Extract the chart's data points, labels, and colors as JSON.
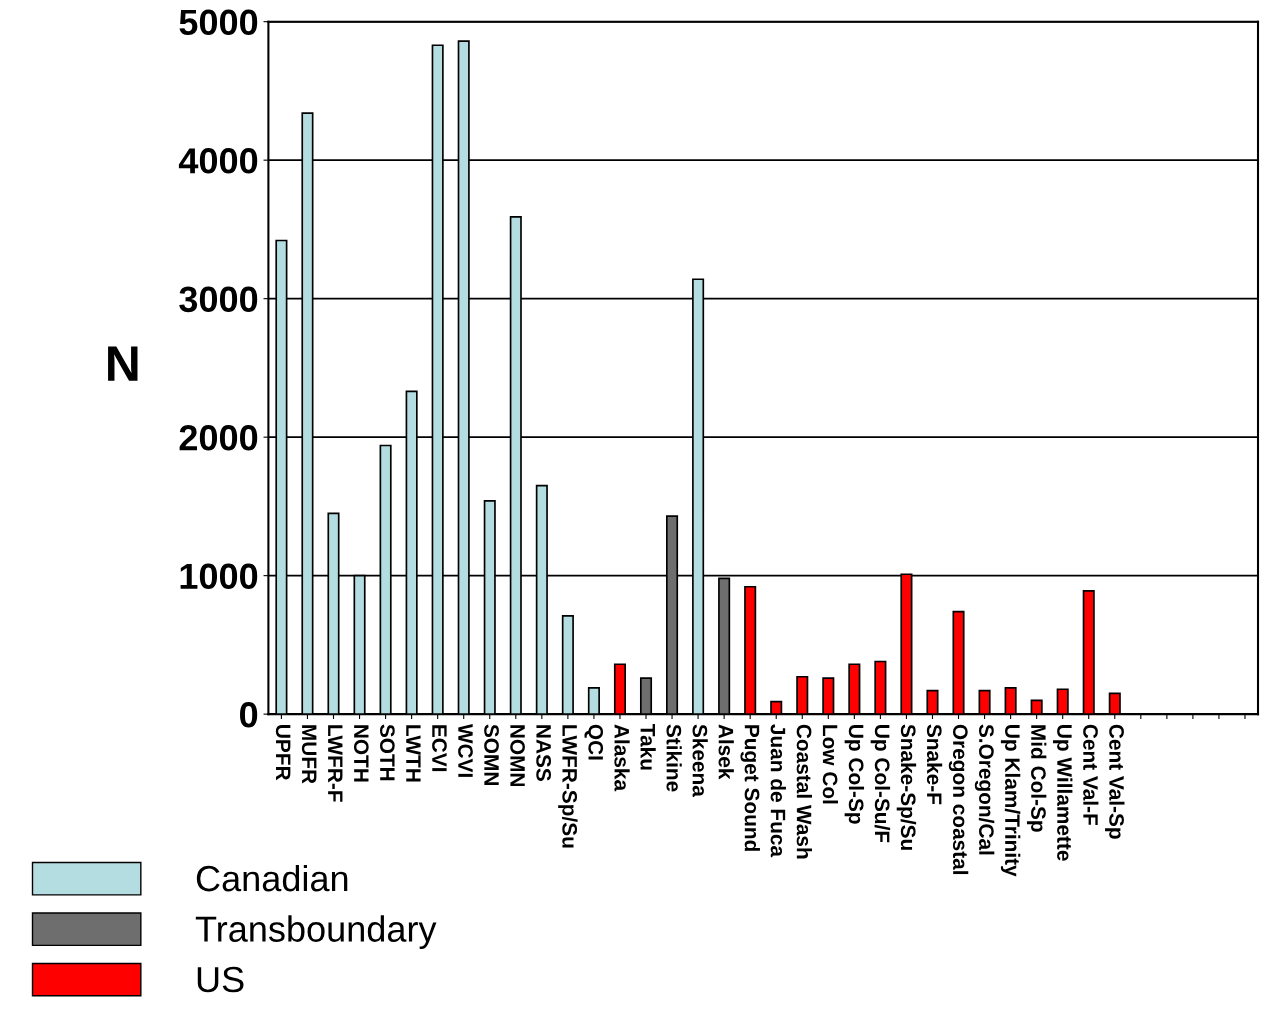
{
  "chart_data": {
    "type": "bar",
    "ylabel": "N",
    "categories": [
      "UPFR",
      "MUFR",
      "LWFR-F",
      "NOTH",
      "SOTH",
      "LWTH",
      "ECVI",
      "WCVI",
      "SOMN",
      "NOMN",
      "NASS",
      "LWFR-Sp/Su",
      "QCI",
      "Alaska",
      "Taku",
      "Stikine",
      "Skeena",
      "Alsek",
      "Puget Sound",
      "Juan de Fuca",
      "Coastal Wash",
      "Low Col",
      "Up Col-Sp",
      "Up Col-Su/F",
      "Snake-Sp/Su",
      "Snake-F",
      "Oregon coastal",
      "S.Oregon/Cal",
      "Up Klam/Trinity",
      "Mid Col-Sp",
      "Up Willamette",
      "Cent Val-F",
      "Cent Val-Sp",
      null,
      null,
      null,
      null,
      null
    ],
    "series": [
      {
        "name": "Canadian",
        "color": "#b3dde0",
        "values": [
          3420,
          4340,
          1450,
          1000,
          1940,
          2330,
          4830,
          4860,
          1540,
          3590,
          1650,
          710,
          190,
          null,
          null,
          null,
          3140,
          null,
          null,
          null,
          null,
          null,
          null,
          null,
          null,
          null,
          null,
          null,
          null,
          null,
          null,
          null,
          null,
          null,
          null,
          null,
          null,
          null
        ]
      },
      {
        "name": "Transboundary",
        "color": "#6e6e6e",
        "values": [
          null,
          null,
          null,
          null,
          null,
          null,
          null,
          null,
          null,
          null,
          null,
          null,
          null,
          null,
          260,
          1430,
          null,
          980,
          null,
          null,
          null,
          null,
          null,
          null,
          null,
          null,
          null,
          null,
          null,
          null,
          null,
          null,
          null,
          null,
          null,
          null,
          null,
          null
        ]
      },
      {
        "name": "US",
        "color": "#ff0000",
        "values": [
          null,
          null,
          null,
          null,
          null,
          null,
          null,
          null,
          null,
          null,
          null,
          null,
          null,
          360,
          null,
          null,
          null,
          null,
          920,
          90,
          270,
          260,
          360,
          380,
          1010,
          170,
          740,
          170,
          190,
          100,
          180,
          890,
          150,
          null,
          null,
          null,
          null,
          null
        ]
      }
    ],
    "ylim": [
      0,
      5000
    ],
    "yticks": [
      0,
      1000,
      2000,
      3000,
      4000,
      5000
    ],
    "grid": "y",
    "legend": "bottom left"
  }
}
